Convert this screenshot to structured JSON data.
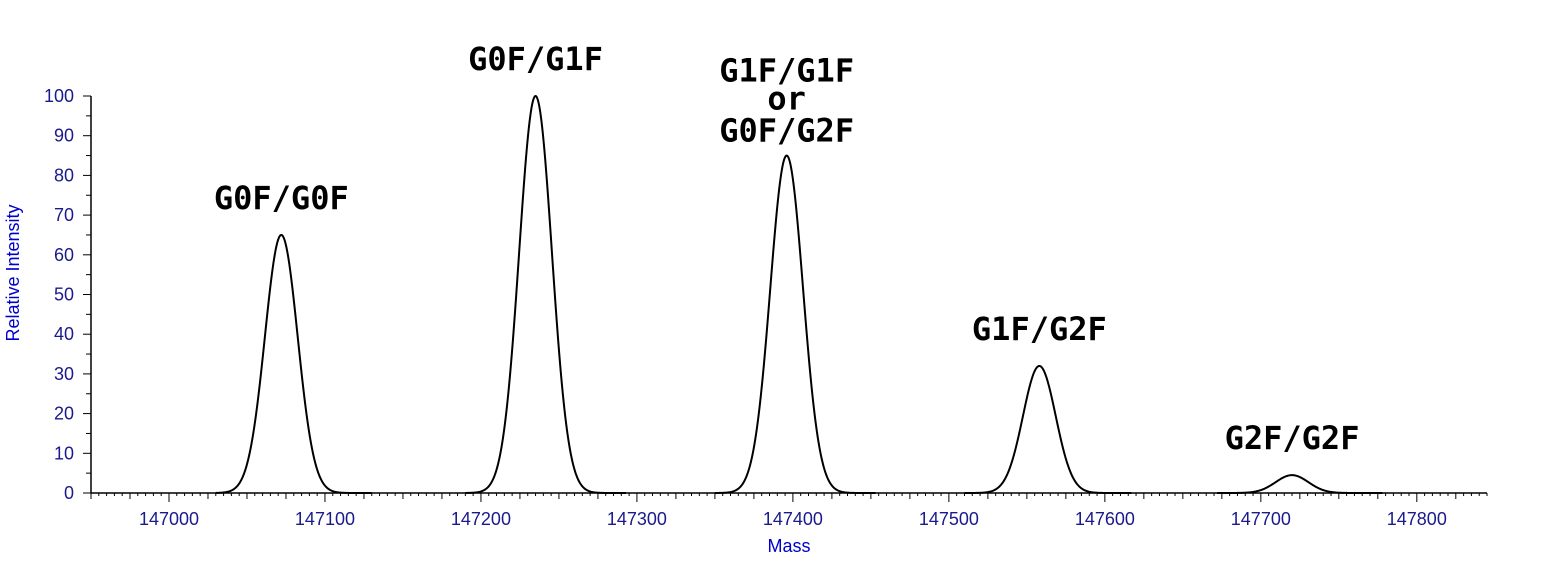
{
  "chart_data": {
    "type": "line",
    "title": "",
    "xlabel": "Mass",
    "ylabel": "Relative Intensity",
    "xlim": [
      146950,
      147845
    ],
    "ylim": [
      0,
      100
    ],
    "xticks": [
      147000,
      147100,
      147200,
      147300,
      147400,
      147500,
      147600,
      147700,
      147800
    ],
    "yticks": [
      0,
      10,
      20,
      30,
      40,
      50,
      60,
      70,
      80,
      90,
      100
    ],
    "grid": false,
    "peaks": [
      {
        "label": "G0F/G0F",
        "mass": 147072,
        "intensity": 65,
        "range": [
          147030,
          147130
        ]
      },
      {
        "label": "G0F/G1F",
        "mass": 147235,
        "intensity": 100,
        "range": [
          147190,
          147293
        ]
      },
      {
        "label_lines": [
          "G1F/G1F",
          "or",
          "G0F/G2F"
        ],
        "mass": 147396,
        "intensity": 85,
        "range": [
          147350,
          147453
        ]
      },
      {
        "label": "G1F/G2F",
        "mass": 147558,
        "intensity": 32,
        "range": [
          147510,
          147617
        ]
      },
      {
        "label": "G2F/G2F",
        "mass": 147720,
        "intensity": 4.5,
        "range": [
          147672,
          147778
        ]
      }
    ]
  }
}
